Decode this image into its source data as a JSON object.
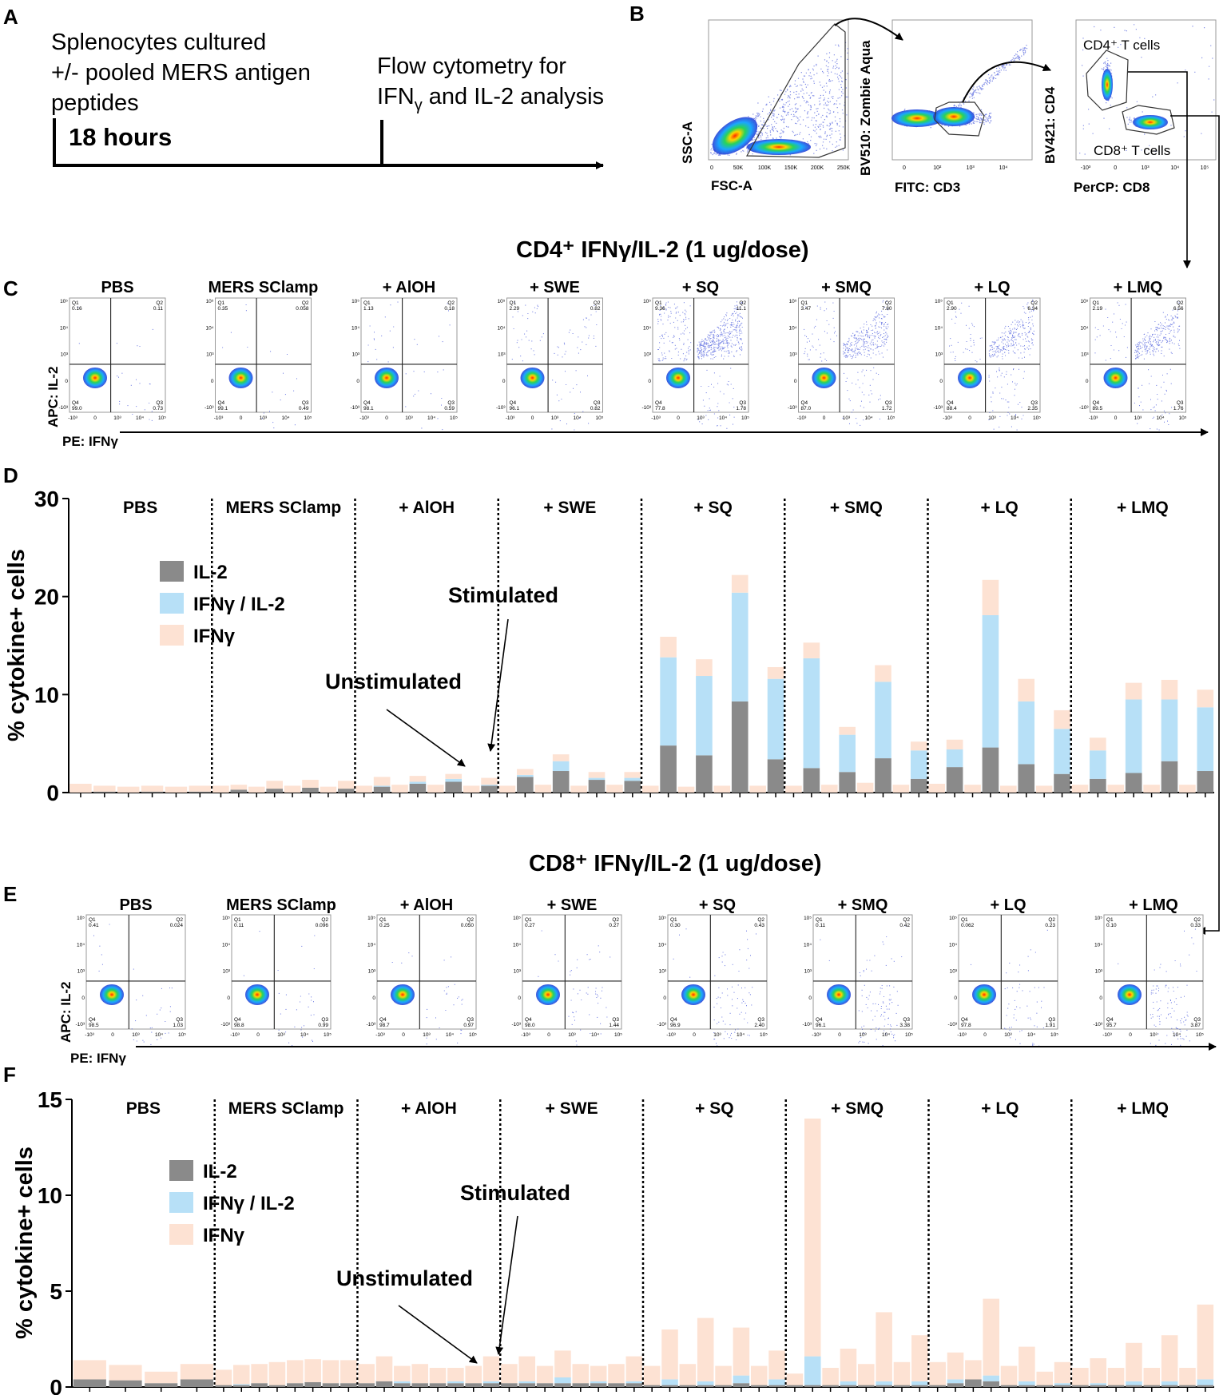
{
  "panels": {
    "A": {
      "letter": "A",
      "text_lines": [
        "Splenocytes cultured",
        "+/- pooled MERS antigen",
        "peptides"
      ],
      "duration": "18 hours",
      "flow_line1": "Flow cytometry for",
      "flow_ifn": "IFN",
      "flow_gamma_sub": "γ",
      "flow_rest": " and IL-2 analysis"
    },
    "B": {
      "letter": "B",
      "plot1": {
        "y": "SSC-A",
        "x": "FSC-A",
        "ticks": [
          "0",
          "50K",
          "100K",
          "150K",
          "200K",
          "250K"
        ]
      },
      "plot2": {
        "y": "BV510: Zombie Aqua",
        "x": "FITC: CD3",
        "ticks": [
          "0",
          "10²",
          "10³",
          "10⁴"
        ]
      },
      "plot3": {
        "y": "BV421: CD4",
        "x": "PerCP: CD8",
        "gate1": "CD4⁺ T cells",
        "gate2": "CD8⁺ T cells",
        "ticks": [
          "-10³",
          "0",
          "10³",
          "10⁴",
          "10⁵"
        ]
      }
    },
    "C": {
      "letter": "C",
      "title": "CD4⁺ IFNγ/IL-2 (1 ug/dose)",
      "y_axis": "APC: IL-2",
      "x_axis": "PE: IFNγ",
      "plots": [
        {
          "label": "PBS",
          "q1": "0.16",
          "q2": "0.11",
          "q3": "0.73",
          "q4": "99.0"
        },
        {
          "label": "MERS SClamp",
          "q1": "0.35",
          "q2": "0.058",
          "q3": "0.49",
          "q4": "99.1"
        },
        {
          "label": "+ AlOH",
          "q1": "1.13",
          "q2": "0.18",
          "q3": "0.59",
          "q4": "98.1"
        },
        {
          "label": "+ SWE",
          "q1": "2.29",
          "q2": "0.82",
          "q3": "0.82",
          "q4": "96.1"
        },
        {
          "label": "+ SQ",
          "q1": "9.36",
          "q2": "11.1",
          "q3": "1.78",
          "q4": "77.8"
        },
        {
          "label": "+ SMQ",
          "q1": "3.47",
          "q2": "7.80",
          "q3": "1.72",
          "q4": "87.0"
        },
        {
          "label": "+ LQ",
          "q1": "2.90",
          "q2": "6.34",
          "q3": "2.35",
          "q4": "88.4"
        },
        {
          "label": "+ LMQ",
          "q1": "2.19",
          "q2": "6.56",
          "q3": "1.76",
          "q4": "89.5"
        }
      ]
    },
    "D": {
      "letter": "D"
    },
    "E": {
      "letter": "E",
      "title": "CD8⁺ IFNγ/IL-2 (1 ug/dose)",
      "y_axis": "APC: IL-2",
      "x_axis": "PE: IFNγ",
      "plots": [
        {
          "label": "PBS",
          "q1": "0.41",
          "q2": "0.024",
          "q3": "1.03",
          "q4": "98.5"
        },
        {
          "label": "MERS SClamp",
          "q1": "0.11",
          "q2": "0.096",
          "q3": "0.99",
          "q4": "98.8"
        },
        {
          "label": "+ AlOH",
          "q1": "0.25",
          "q2": "0.050",
          "q3": "0.97",
          "q4": "98.7"
        },
        {
          "label": "+ SWE",
          "q1": "0.27",
          "q2": "0.27",
          "q3": "1.44",
          "q4": "98.0"
        },
        {
          "label": "+ SQ",
          "q1": "0.30",
          "q2": "0.43",
          "q3": "2.40",
          "q4": "96.9"
        },
        {
          "label": "+ SMQ",
          "q1": "0.11",
          "q2": "0.42",
          "q3": "3.38",
          "q4": "96.1"
        },
        {
          "label": "+ LQ",
          "q1": "0.062",
          "q2": "0.23",
          "q3": "1.91",
          "q4": "97.8"
        },
        {
          "label": "+ LMQ",
          "q1": "0.10",
          "q2": "0.33",
          "q3": "3.87",
          "q4": "95.7"
        }
      ]
    },
    "F": {
      "letter": "F"
    }
  },
  "flow_ticks": [
    "-10³",
    "0",
    "10³",
    "10⁴",
    "10⁵"
  ],
  "colors": {
    "il2": "#8a8a8a",
    "both": "#b7e0f7",
    "ifn": "#fde2d3",
    "flow_blue": "#2b3fd6"
  },
  "chart_data": [
    {
      "type": "bar",
      "stacked": true,
      "panel": "D",
      "ylabel": "% cytokine+ cells",
      "ylim": [
        0,
        30
      ],
      "yticks": [
        0,
        10,
        20,
        30
      ],
      "groups": [
        "PBS",
        "MERS SClamp",
        "+ AlOH",
        "+ SWE",
        "+ SQ",
        "+ SMQ",
        "+ LQ",
        "+ LMQ"
      ],
      "legend": [
        "IL-2",
        "IFNγ / IL-2",
        "IFNγ"
      ],
      "annotations": {
        "stimulated": "Stimulated",
        "unstimulated": "Unstimulated"
      },
      "series_order": [
        "IL-2",
        "IFNγ / IL-2",
        "IFNγ"
      ],
      "data": [
        [
          [
            0,
            0,
            0.9
          ],
          [
            0.1,
            0,
            0.6
          ],
          [
            0,
            0,
            0.6
          ],
          [
            0.1,
            0,
            0.6
          ],
          [
            0,
            0,
            0.6
          ],
          [
            0.1,
            0,
            0.6
          ]
        ],
        [
          [
            0,
            0,
            0.7
          ],
          [
            0.3,
            0,
            0.5
          ],
          [
            0,
            0,
            0.6
          ],
          [
            0.4,
            0,
            0.8
          ],
          [
            0,
            0,
            0.7
          ],
          [
            0.5,
            0,
            0.8
          ],
          [
            0,
            0,
            0.6
          ],
          [
            0.4,
            0,
            0.8
          ]
        ],
        [
          [
            0,
            0,
            0.7
          ],
          [
            0.6,
            0.1,
            0.9
          ],
          [
            0,
            0,
            0.8
          ],
          [
            0.9,
            0.2,
            0.6
          ],
          [
            0,
            0,
            0.8
          ],
          [
            1.1,
            0.3,
            0.5
          ],
          [
            0,
            0,
            0.7
          ],
          [
            0.7,
            0.1,
            0.7
          ]
        ],
        [
          [
            0,
            0,
            0.7
          ],
          [
            1.6,
            0.2,
            0.6
          ],
          [
            0,
            0,
            0.8
          ],
          [
            2.2,
            1.0,
            0.7
          ],
          [
            0,
            0,
            0.7
          ],
          [
            1.3,
            0.2,
            0.6
          ],
          [
            0,
            0,
            0.8
          ],
          [
            1.2,
            0.3,
            0.6
          ]
        ],
        [
          [
            0,
            0,
            0.7
          ],
          [
            4.8,
            9.0,
            2.1
          ],
          [
            0,
            0,
            0.6
          ],
          [
            3.8,
            8.1,
            1.7
          ],
          [
            0,
            0,
            0.7
          ],
          [
            9.3,
            11.1,
            1.8
          ],
          [
            0,
            0,
            0.7
          ],
          [
            3.4,
            8.2,
            1.2
          ]
        ],
        [
          [
            0,
            0,
            0.7
          ],
          [
            2.5,
            11.2,
            1.6
          ],
          [
            0,
            0,
            0.8
          ],
          [
            2.1,
            3.8,
            0.8
          ],
          [
            0,
            0,
            1.0
          ],
          [
            3.5,
            7.8,
            1.7
          ],
          [
            0,
            0,
            0.8
          ],
          [
            1.4,
            2.9,
            0.9
          ]
        ],
        [
          [
            0,
            0,
            0.9
          ],
          [
            2.6,
            1.8,
            1.0
          ],
          [
            0,
            0,
            0.8
          ],
          [
            4.6,
            13.5,
            3.6
          ],
          [
            0,
            0,
            0.7
          ],
          [
            2.9,
            6.4,
            2.3
          ],
          [
            0,
            0,
            0.7
          ],
          [
            1.9,
            4.6,
            1.9
          ]
        ],
        [
          [
            0,
            0,
            0.8
          ],
          [
            1.4,
            2.9,
            1.3
          ],
          [
            0,
            0,
            0.8
          ],
          [
            2.0,
            7.5,
            1.7
          ],
          [
            0,
            0,
            0.8
          ],
          [
            3.2,
            6.3,
            2.0
          ],
          [
            0,
            0,
            0.8
          ],
          [
            2.2,
            6.5,
            1.8
          ]
        ]
      ]
    },
    {
      "type": "bar",
      "stacked": true,
      "panel": "F",
      "ylabel": "% cytokine+ cells",
      "ylim": [
        0,
        15
      ],
      "yticks": [
        0,
        5,
        10,
        15
      ],
      "groups": [
        "PBS",
        "MERS SClamp",
        "+ AlOH",
        "+ SWE",
        "+ SQ",
        "+ SMQ",
        "+ LQ",
        "+ LMQ"
      ],
      "legend": [
        "IL-2",
        "IFNγ / IL-2",
        "IFNγ"
      ],
      "annotations": {
        "stimulated": "Stimulated",
        "unstimulated": "Unstimulated"
      },
      "series_order": [
        "IL-2",
        "IFNγ / IL-2",
        "IFNγ"
      ],
      "data": [
        [
          [
            0.4,
            0,
            1.0
          ],
          [
            0.35,
            0,
            0.8
          ],
          [
            0.2,
            0,
            0.6
          ],
          [
            0.4,
            0,
            0.8
          ]
        ],
        [
          [
            0.1,
            0,
            0.8
          ],
          [
            0.1,
            0.05,
            1.0
          ],
          [
            0.2,
            0,
            1.0
          ],
          [
            0.1,
            0,
            1.2
          ],
          [
            0.2,
            0,
            1.2
          ],
          [
            0.25,
            0,
            1.2
          ],
          [
            0.2,
            0,
            1.2
          ],
          [
            0.2,
            0,
            1.2
          ]
        ],
        [
          [
            0.2,
            0,
            1.0
          ],
          [
            0.3,
            0,
            1.3
          ],
          [
            0.2,
            0.1,
            0.8
          ],
          [
            0.2,
            0,
            1.0
          ],
          [
            0.2,
            0,
            0.8
          ],
          [
            0.2,
            0.1,
            0.7
          ],
          [
            0.2,
            0,
            0.9
          ],
          [
            0.2,
            0.1,
            1.3
          ]
        ],
        [
          [
            0.2,
            0,
            1.0
          ],
          [
            0.2,
            0.1,
            1.3
          ],
          [
            0.2,
            0,
            0.9
          ],
          [
            0.2,
            0.3,
            1.4
          ],
          [
            0.2,
            0,
            1.0
          ],
          [
            0.2,
            0.1,
            0.8
          ],
          [
            0.2,
            0,
            1.0
          ],
          [
            0.2,
            0.1,
            1.3
          ]
        ],
        [
          [
            0.1,
            0,
            1.0
          ],
          [
            0.1,
            0.3,
            2.6
          ],
          [
            0.1,
            0,
            1.1
          ],
          [
            0.1,
            0.2,
            3.3
          ],
          [
            0.1,
            0,
            1.0
          ],
          [
            0.2,
            0.4,
            2.5
          ],
          [
            0.1,
            0,
            1.0
          ],
          [
            0.1,
            0.3,
            1.5
          ]
        ],
        [
          [
            0.1,
            0,
            0.6
          ],
          [
            0.1,
            1.5,
            12.4
          ],
          [
            0.1,
            0,
            0.9
          ],
          [
            0.1,
            0.2,
            1.7
          ],
          [
            0.1,
            0,
            1.1
          ],
          [
            0.1,
            0.2,
            3.6
          ],
          [
            0.1,
            0,
            1.2
          ],
          [
            0.1,
            0.2,
            2.4
          ]
        ],
        [
          [
            0.1,
            0,
            1.2
          ],
          [
            0.2,
            0.2,
            1.4
          ],
          [
            0.4,
            0,
            1.0
          ],
          [
            0.3,
            0.3,
            4.0
          ],
          [
            0.1,
            0,
            1.0
          ],
          [
            0.1,
            0.2,
            1.8
          ],
          [
            0.1,
            0,
            0.7
          ],
          [
            0.1,
            0.1,
            1.1
          ]
        ],
        [
          [
            0.1,
            0,
            0.9
          ],
          [
            0.1,
            0.1,
            1.3
          ],
          [
            0.1,
            0,
            0.9
          ],
          [
            0.1,
            0.2,
            2.0
          ],
          [
            0.1,
            0,
            0.9
          ],
          [
            0.1,
            0.2,
            2.4
          ],
          [
            0.1,
            0,
            0.9
          ],
          [
            0.1,
            0.3,
            3.9
          ]
        ]
      ]
    }
  ]
}
